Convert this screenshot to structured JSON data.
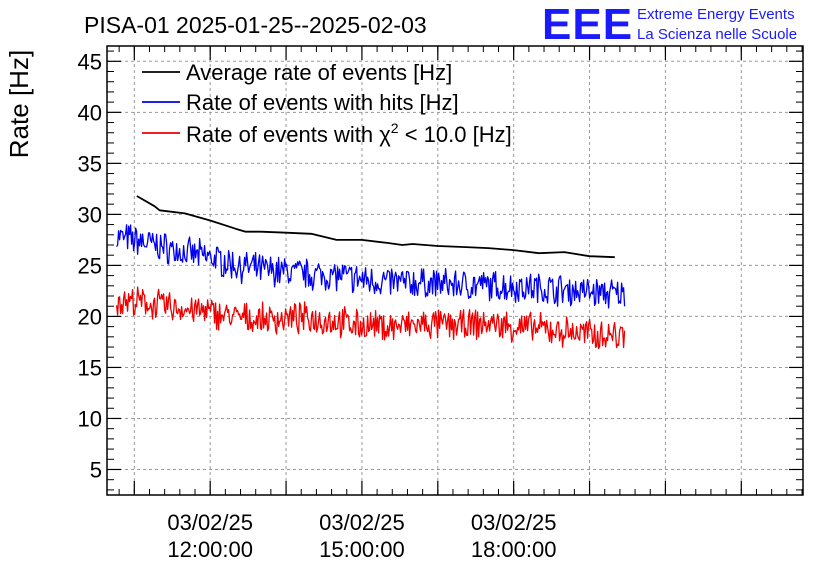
{
  "header": {
    "title": "PISA-01 2025-01-25--2025-02-03",
    "logo_mark": "EEE",
    "logo_line1": "Extreme Energy Events",
    "logo_line2": "La Scienza nelle Scuole"
  },
  "colors": {
    "average": "#000000",
    "hits": "#0000ee",
    "chi2": "#ee0000",
    "logo": "#1a1aff",
    "grid": "#9a9a9a"
  },
  "chart_data": {
    "type": "line",
    "title": "PISA-01 2025-01-25--2025-02-03",
    "xlabel": "",
    "ylabel": "Rate [Hz]",
    "x_unit": "hours",
    "xlim": [
      9.96,
      23.72
    ],
    "ylim": [
      2.5,
      46.5
    ],
    "x_ticks": [
      {
        "x": 12,
        "date": "03/02/25",
        "time": "12:00:00"
      },
      {
        "x": 15,
        "date": "03/02/25",
        "time": "15:00:00"
      },
      {
        "x": 18,
        "date": "03/02/25",
        "time": "18:00:00"
      }
    ],
    "y_ticks": [
      5,
      10,
      15,
      20,
      25,
      30,
      35,
      40,
      45
    ],
    "grid": true,
    "legend_position": "top-left",
    "series": [
      {
        "name": "Average rate of events [Hz]",
        "key": "average",
        "color": "#000000",
        "noisy": false,
        "x": [
          10.55,
          10.9,
          11.0,
          11.5,
          12.0,
          12.5,
          12.7,
          13.0,
          13.5,
          14.0,
          14.5,
          15.0,
          15.5,
          15.8,
          16.0,
          16.5,
          17.0,
          17.5,
          18.0,
          18.5,
          19.0,
          19.5,
          20.0
        ],
        "y": [
          31.8,
          30.8,
          30.4,
          30.1,
          29.4,
          28.6,
          28.3,
          28.3,
          28.2,
          28.1,
          27.5,
          27.5,
          27.2,
          27.0,
          27.1,
          26.9,
          26.8,
          26.7,
          26.5,
          26.2,
          26.3,
          25.9,
          25.8
        ]
      },
      {
        "name": "Rate of events with hits [Hz]",
        "key": "hits",
        "color": "#0000ee",
        "noisy": true,
        "x": [
          10.15,
          10.5,
          11.0,
          11.5,
          12.0,
          12.5,
          13.0,
          13.5,
          14.0,
          14.5,
          15.0,
          15.5,
          16.0,
          16.5,
          17.0,
          17.5,
          18.0,
          18.5,
          19.0,
          19.5,
          20.2
        ],
        "y": [
          27.8,
          27.5,
          26.9,
          26.2,
          25.8,
          25.0,
          24.6,
          24.4,
          24.1,
          24.0,
          23.6,
          23.4,
          23.3,
          23.2,
          23.1,
          23.0,
          22.9,
          22.8,
          22.6,
          22.4,
          22.1
        ]
      },
      {
        "name": "Rate of events with χ² < 10.0 [Hz]",
        "key": "chi2",
        "color": "#ee0000",
        "noisy": true,
        "x": [
          10.15,
          10.5,
          11.0,
          11.5,
          12.0,
          12.5,
          13.0,
          13.5,
          14.0,
          14.5,
          15.0,
          15.5,
          16.0,
          16.5,
          17.0,
          17.5,
          18.0,
          18.5,
          19.0,
          19.5,
          20.2
        ],
        "y": [
          21.6,
          21.4,
          21.1,
          20.7,
          20.4,
          19.9,
          19.7,
          19.8,
          19.8,
          19.5,
          19.1,
          19.0,
          19.1,
          19.2,
          19.1,
          19.3,
          19.0,
          18.8,
          18.5,
          18.3,
          18.1
        ]
      }
    ],
    "legend": [
      {
        "label_main": "Rate of events with ",
        "label_chi": "χ",
        "label_sup": "2",
        "label_tail": " < 10.0 [Hz]"
      }
    ]
  }
}
